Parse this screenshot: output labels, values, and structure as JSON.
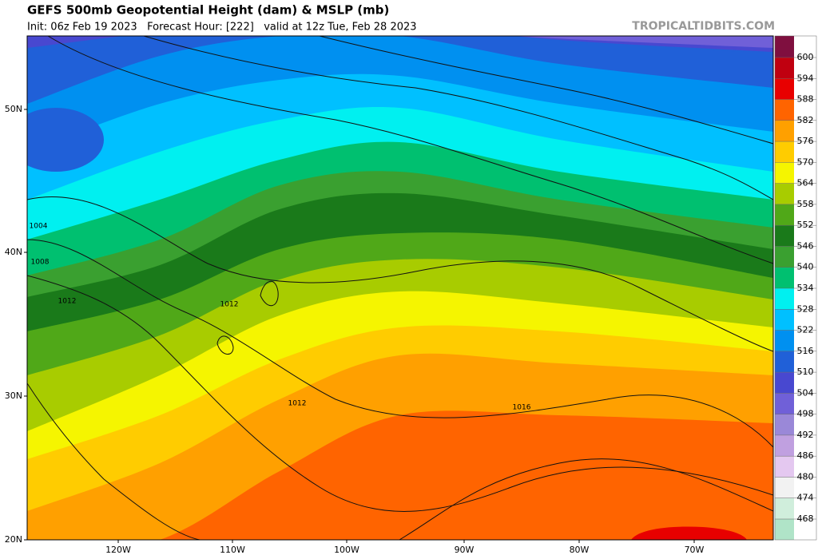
{
  "header": {
    "title": "GEFS 500mb Geopotential Height (dam) & MSLP (mb)",
    "subtitle": "Init: 06z Feb 19 2023   Forecast Hour: [222]   valid at 12z Tue, Feb 28 2023",
    "watermark": "TROPICALTIDBITS.COM"
  },
  "map": {
    "latitude_labels": [
      "50N",
      "40N",
      "30N",
      "20N"
    ],
    "longitude_labels": [
      "120W",
      "110W",
      "100W",
      "90W",
      "80W",
      "70W"
    ],
    "contour_labels": [
      "1004",
      "1008",
      "1012",
      "1012",
      "1012",
      "1016"
    ]
  },
  "colorbar": {
    "levels": [
      600,
      594,
      588,
      582,
      576,
      570,
      564,
      558,
      552,
      546,
      540,
      534,
      528,
      522,
      516,
      510,
      504,
      498,
      492,
      486,
      480,
      474,
      468
    ],
    "colors": [
      "#7f0f3f",
      "#c00010",
      "#e80000",
      "#ff6400",
      "#ffa000",
      "#ffcc00",
      "#f5f500",
      "#a8cc00",
      "#50a818",
      "#1a7a1a",
      "#3aa030",
      "#00c070",
      "#00f0f0",
      "#00c0ff",
      "#0090f0",
      "#2060d8",
      "#4848d0",
      "#7060d8",
      "#9a88d8",
      "#c0a0e0",
      "#e4c8f0",
      "#f2f2f2",
      "#d0eedc",
      "#b0e4c8"
    ]
  }
}
